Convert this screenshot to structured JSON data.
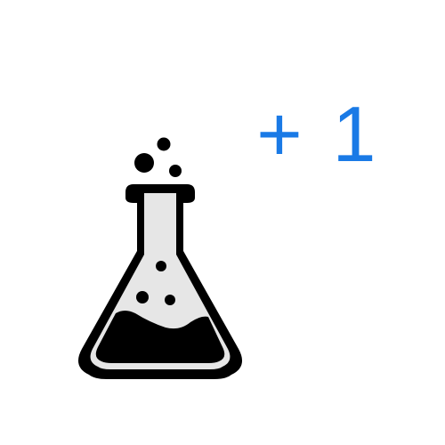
{
  "icon": {
    "name": "erlenmeyer-flask-icon",
    "outline_color": "#000000",
    "glass_color": "#e6e6e6",
    "liquid_color": "#000000",
    "bubble_color": "#000000"
  },
  "badge": {
    "sign": "+",
    "count": "1",
    "color": "#1a7ae6"
  }
}
